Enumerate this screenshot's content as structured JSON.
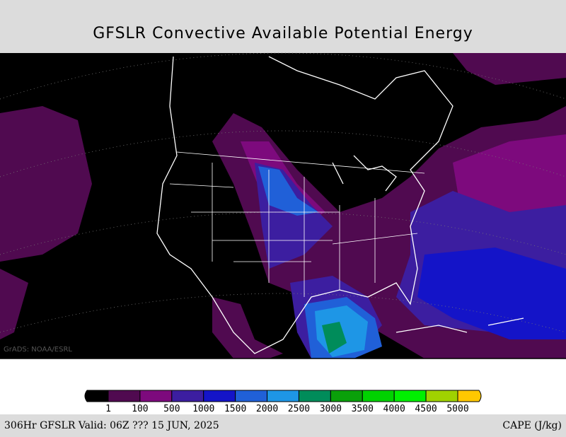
{
  "title": "GFSLR Convective Available Potential Energy",
  "watermark": "GrADS: NOAA/ESRL",
  "legend": {
    "colors": [
      "#000000",
      "#500a50",
      "#7d0a7d",
      "#3c1ea0",
      "#1414c8",
      "#2060d8",
      "#1e96e6",
      "#008c5a",
      "#0aa00a",
      "#00d200",
      "#00f000",
      "#a0d200",
      "#ffc800"
    ],
    "labels": [
      "1",
      "100",
      "500",
      "1000",
      "1500",
      "2000",
      "2500",
      "3000",
      "3500",
      "4000",
      "4500",
      "5000"
    ]
  },
  "footer": {
    "left": "306Hr GFSLR Valid: 06Z ??? 15 JUN, 2025",
    "right": "CAPE (J/kg)"
  }
}
